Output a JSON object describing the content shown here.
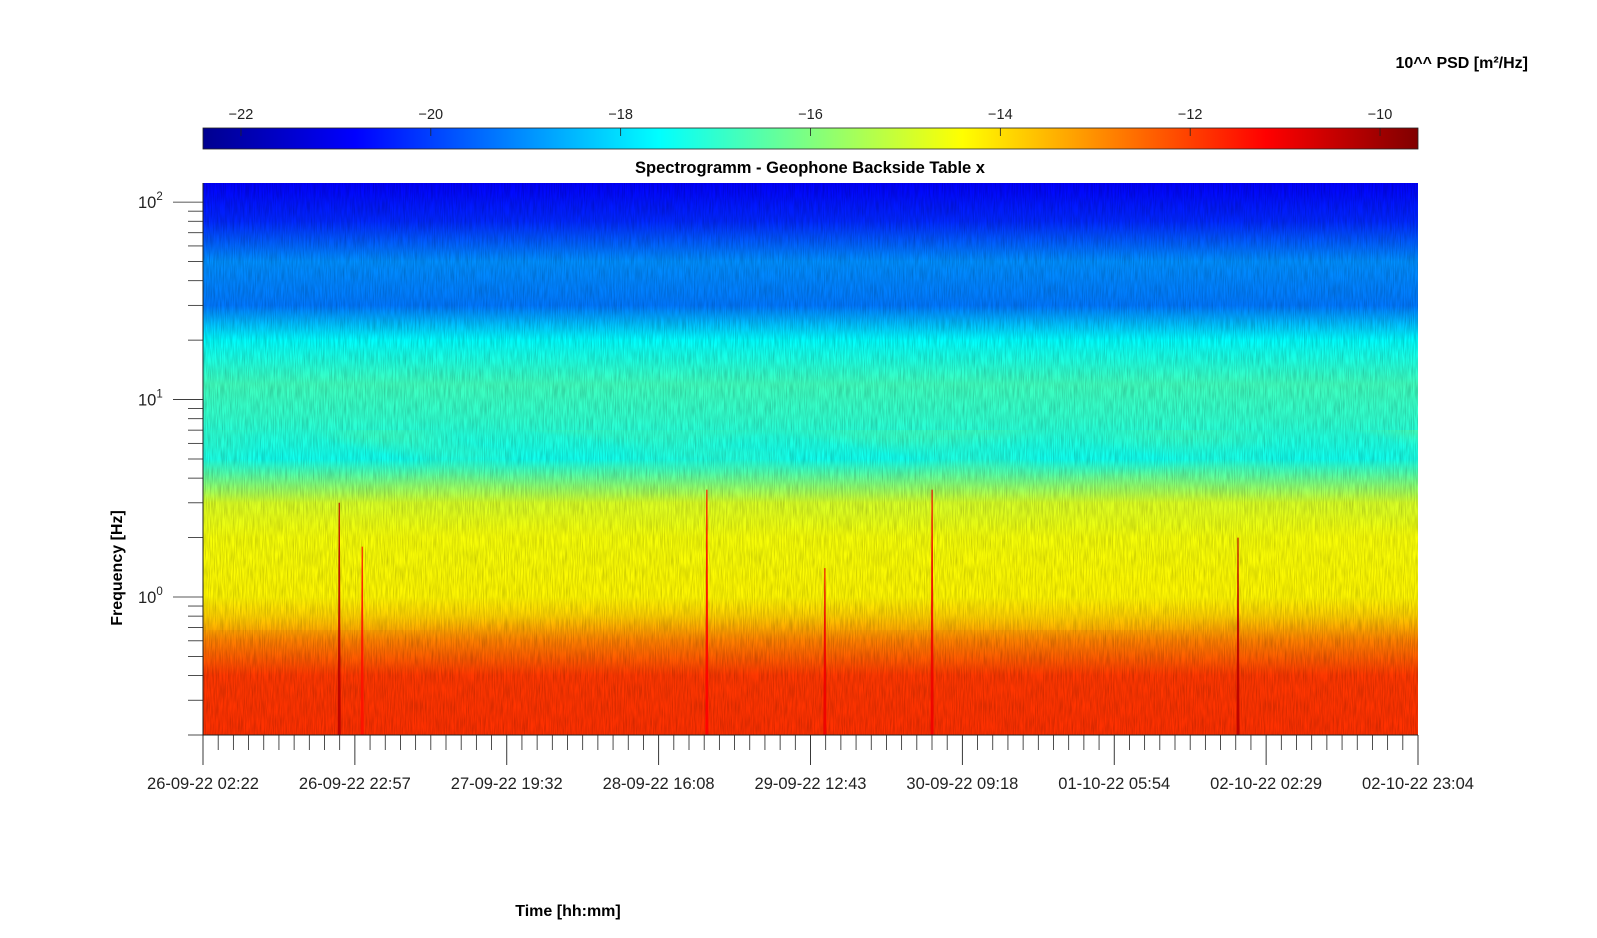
{
  "chart_data": {
    "type": "heatmap",
    "title": "Spectrogramm - Geophone Backside Table x",
    "xlabel": "Time [hh:mm]",
    "ylabel": "Frequency [Hz]",
    "y_scale": "log",
    "ylim": [
      0.2,
      125
    ],
    "colormap": "jet",
    "colorbar": {
      "label": "10^^ PSD [m²/Hz]",
      "range": [
        -22.4,
        -9.6
      ],
      "ticks": [
        -22,
        -20,
        -18,
        -16,
        -14,
        -12,
        -10
      ],
      "placement": "top"
    },
    "x_ticks": [
      "26-09-22 02:22",
      "26-09-22 22:57",
      "27-09-22 19:32",
      "28-09-22 16:08",
      "29-09-22 12:43",
      "30-09-22 09:18",
      "01-10-22 05:54",
      "02-10-22 02:29",
      "02-10-22 23:04"
    ],
    "y_tick_exponents": [
      "0",
      "1",
      "2"
    ],
    "y_tick_base": "10",
    "psd_profile": [
      {
        "freq": 0.2,
        "log10_psd": -11.8
      },
      {
        "freq": 0.4,
        "log10_psd": -11.9
      },
      {
        "freq": 0.6,
        "log10_psd": -12.8
      },
      {
        "freq": 0.8,
        "log10_psd": -13.8
      },
      {
        "freq": 1.0,
        "log10_psd": -14.3
      },
      {
        "freq": 2.0,
        "log10_psd": -14.5
      },
      {
        "freq": 3.0,
        "log10_psd": -14.9
      },
      {
        "freq": 5.0,
        "log10_psd": -17.4
      },
      {
        "freq": 8.0,
        "log10_psd": -17.0
      },
      {
        "freq": 12.0,
        "log10_psd": -16.8
      },
      {
        "freq": 20.0,
        "log10_psd": -17.6
      },
      {
        "freq": 30.0,
        "log10_psd": -19.3
      },
      {
        "freq": 50.0,
        "log10_psd": -19.0
      },
      {
        "freq": 80.0,
        "log10_psd": -20.3
      },
      {
        "freq": 125.0,
        "log10_psd": -20.8
      }
    ],
    "events": [
      {
        "time": "26-09-22 20:50",
        "freq_max": 3.0,
        "log10_psd": -10.3
      },
      {
        "time": "26-09-22 23:57",
        "freq_max": 1.8,
        "log10_psd": -11.4
      },
      {
        "time": "28-09-22 22:40",
        "freq_max": 3.5,
        "log10_psd": -11.2
      },
      {
        "time": "29-09-22 14:40",
        "freq_max": 1.4,
        "log10_psd": -11.0
      },
      {
        "time": "30-09-22 05:12",
        "freq_max": 3.5,
        "log10_psd": -11.0
      },
      {
        "time": "01-10-22 22:40",
        "freq_max": 2.0,
        "log10_psd": -10.3
      }
    ]
  }
}
